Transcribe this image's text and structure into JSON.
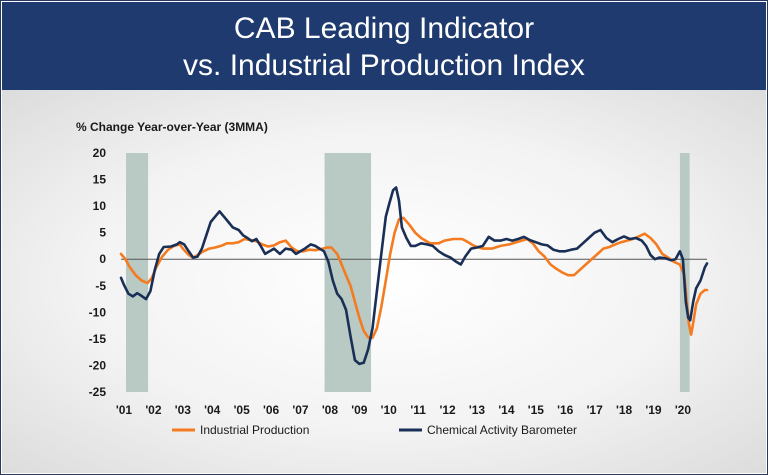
{
  "header": {
    "title_line1": "CAB Leading Indicator",
    "title_line2": "vs. Industrial Production Index"
  },
  "colors": {
    "header_bg": "#1f3a6e",
    "industrial_production": "#f47b20",
    "chemical_activity_barometer": "#1a2f55",
    "recession_shade": "#b9c9c4"
  },
  "chart_data": {
    "type": "line",
    "ylabel": "% Change Year-over-Year (3MMA)",
    "ylim": [
      -25,
      20
    ],
    "yticks": [
      -25,
      -20,
      -15,
      -10,
      -5,
      0,
      5,
      10,
      15,
      20
    ],
    "xlim": [
      2001.0,
      2020.92
    ],
    "xticks": [
      {
        "label": "'01",
        "x": 2001.0
      },
      {
        "label": "'02",
        "x": 2002.0
      },
      {
        "label": "'03",
        "x": 2003.0
      },
      {
        "label": "'04",
        "x": 2004.0
      },
      {
        "label": "'05",
        "x": 2005.0
      },
      {
        "label": "'06",
        "x": 2006.0
      },
      {
        "label": "'07",
        "x": 2007.0
      },
      {
        "label": "'08",
        "x": 2008.0
      },
      {
        "label": "'09",
        "x": 2009.0
      },
      {
        "label": "'10",
        "x": 2010.0
      },
      {
        "label": "'11",
        "x": 2011.0
      },
      {
        "label": "'12",
        "x": 2012.0
      },
      {
        "label": "'13",
        "x": 2013.0
      },
      {
        "label": "'14",
        "x": 2014.0
      },
      {
        "label": "'15",
        "x": 2015.0
      },
      {
        "label": "'16",
        "x": 2016.0
      },
      {
        "label": "'17",
        "x": 2017.0
      },
      {
        "label": "'18",
        "x": 2018.0
      },
      {
        "label": "'19",
        "x": 2019.0
      },
      {
        "label": "'20",
        "x": 2020.0
      }
    ],
    "recessions": [
      [
        2001.17,
        2001.92
      ],
      [
        2007.92,
        2009.5
      ],
      [
        2020.0,
        2020.33
      ]
    ],
    "legend": "bottom",
    "grid": false,
    "series": [
      {
        "name": "Industrial Production",
        "color": "#f47b20",
        "points": [
          [
            2001.0,
            1.0
          ],
          [
            2001.15,
            0.0
          ],
          [
            2001.3,
            -1.5
          ],
          [
            2001.5,
            -3.0
          ],
          [
            2001.7,
            -4.0
          ],
          [
            2001.9,
            -4.5
          ],
          [
            2002.05,
            -3.5
          ],
          [
            2002.2,
            -1.5
          ],
          [
            2002.4,
            0.5
          ],
          [
            2002.6,
            1.8
          ],
          [
            2002.8,
            2.5
          ],
          [
            2003.0,
            2.8
          ],
          [
            2003.1,
            2.0
          ],
          [
            2003.3,
            0.8
          ],
          [
            2003.45,
            0.3
          ],
          [
            2003.6,
            0.8
          ],
          [
            2003.8,
            1.5
          ],
          [
            2004.0,
            2.0
          ],
          [
            2004.2,
            2.2
          ],
          [
            2004.4,
            2.5
          ],
          [
            2004.6,
            3.0
          ],
          [
            2004.8,
            3.0
          ],
          [
            2005.0,
            3.2
          ],
          [
            2005.2,
            3.8
          ],
          [
            2005.4,
            3.6
          ],
          [
            2005.6,
            3.4
          ],
          [
            2005.8,
            2.8
          ],
          [
            2006.0,
            2.4
          ],
          [
            2006.2,
            2.6
          ],
          [
            2006.4,
            3.2
          ],
          [
            2006.6,
            3.5
          ],
          [
            2006.8,
            2.2
          ],
          [
            2007.0,
            1.5
          ],
          [
            2007.2,
            1.5
          ],
          [
            2007.4,
            1.8
          ],
          [
            2007.6,
            1.7
          ],
          [
            2007.8,
            1.9
          ],
          [
            2008.0,
            2.2
          ],
          [
            2008.15,
            2.2
          ],
          [
            2008.35,
            1.0
          ],
          [
            2008.5,
            -1.0
          ],
          [
            2008.65,
            -3.0
          ],
          [
            2008.8,
            -5.0
          ],
          [
            2008.95,
            -8.0
          ],
          [
            2009.1,
            -11.0
          ],
          [
            2009.25,
            -13.5
          ],
          [
            2009.4,
            -14.7
          ],
          [
            2009.55,
            -14.8
          ],
          [
            2009.7,
            -13.0
          ],
          [
            2009.85,
            -9.0
          ],
          [
            2010.0,
            -4.0
          ],
          [
            2010.15,
            1.0
          ],
          [
            2010.3,
            5.0
          ],
          [
            2010.45,
            7.5
          ],
          [
            2010.6,
            7.8
          ],
          [
            2010.8,
            6.5
          ],
          [
            2011.0,
            5.0
          ],
          [
            2011.2,
            4.0
          ],
          [
            2011.5,
            3.0
          ],
          [
            2011.8,
            3.0
          ],
          [
            2012.0,
            3.5
          ],
          [
            2012.3,
            3.8
          ],
          [
            2012.6,
            3.8
          ],
          [
            2012.8,
            3.2
          ],
          [
            2013.0,
            2.5
          ],
          [
            2013.3,
            2.0
          ],
          [
            2013.6,
            2.0
          ],
          [
            2013.9,
            2.5
          ],
          [
            2014.2,
            2.8
          ],
          [
            2014.5,
            3.3
          ],
          [
            2014.8,
            3.8
          ],
          [
            2015.0,
            3.0
          ],
          [
            2015.2,
            1.5
          ],
          [
            2015.4,
            0.5
          ],
          [
            2015.6,
            -1.0
          ],
          [
            2015.8,
            -1.8
          ],
          [
            2016.0,
            -2.5
          ],
          [
            2016.2,
            -3.0
          ],
          [
            2016.4,
            -3.0
          ],
          [
            2016.6,
            -2.0
          ],
          [
            2016.8,
            -1.0
          ],
          [
            2017.0,
            0.0
          ],
          [
            2017.2,
            1.0
          ],
          [
            2017.4,
            2.0
          ],
          [
            2017.6,
            2.3
          ],
          [
            2017.8,
            2.8
          ],
          [
            2018.0,
            3.2
          ],
          [
            2018.2,
            3.5
          ],
          [
            2018.4,
            3.8
          ],
          [
            2018.6,
            4.3
          ],
          [
            2018.8,
            4.8
          ],
          [
            2019.0,
            4.0
          ],
          [
            2019.2,
            2.8
          ],
          [
            2019.4,
            1.0
          ],
          [
            2019.6,
            0.3
          ],
          [
            2019.8,
            -0.5
          ],
          [
            2020.0,
            -1.0
          ],
          [
            2020.15,
            -3.0
          ],
          [
            2020.3,
            -12.0
          ],
          [
            2020.38,
            -14.2
          ],
          [
            2020.45,
            -12.0
          ],
          [
            2020.55,
            -8.5
          ],
          [
            2020.7,
            -6.5
          ],
          [
            2020.85,
            -5.8
          ],
          [
            2020.92,
            -5.8
          ]
        ]
      },
      {
        "name": "Chemical Activity Barometer",
        "color": "#1a2f55",
        "points": [
          [
            2001.0,
            -3.5
          ],
          [
            2001.1,
            -4.8
          ],
          [
            2001.25,
            -6.5
          ],
          [
            2001.4,
            -7.0
          ],
          [
            2001.55,
            -6.4
          ],
          [
            2001.7,
            -6.9
          ],
          [
            2001.85,
            -7.5
          ],
          [
            2002.0,
            -6.0
          ],
          [
            2002.15,
            -2.0
          ],
          [
            2002.3,
            1.0
          ],
          [
            2002.45,
            2.3
          ],
          [
            2002.7,
            2.4
          ],
          [
            2002.9,
            2.8
          ],
          [
            2003.0,
            3.2
          ],
          [
            2003.15,
            2.8
          ],
          [
            2003.3,
            1.5
          ],
          [
            2003.45,
            0.3
          ],
          [
            2003.6,
            0.5
          ],
          [
            2003.75,
            2.0
          ],
          [
            2003.9,
            4.5
          ],
          [
            2004.05,
            7.0
          ],
          [
            2004.2,
            8.0
          ],
          [
            2004.35,
            9.0
          ],
          [
            2004.5,
            8.0
          ],
          [
            2004.65,
            7.0
          ],
          [
            2004.8,
            6.0
          ],
          [
            2005.0,
            5.5
          ],
          [
            2005.15,
            4.5
          ],
          [
            2005.3,
            4.0
          ],
          [
            2005.45,
            3.4
          ],
          [
            2005.6,
            3.8
          ],
          [
            2005.75,
            2.5
          ],
          [
            2005.9,
            1.0
          ],
          [
            2006.05,
            1.5
          ],
          [
            2006.2,
            2.0
          ],
          [
            2006.4,
            1.0
          ],
          [
            2006.6,
            2.0
          ],
          [
            2006.8,
            1.8
          ],
          [
            2006.95,
            1.0
          ],
          [
            2007.1,
            1.5
          ],
          [
            2007.25,
            2.0
          ],
          [
            2007.45,
            2.8
          ],
          [
            2007.6,
            2.5
          ],
          [
            2007.75,
            2.0
          ],
          [
            2007.9,
            1.5
          ],
          [
            2008.05,
            -0.5
          ],
          [
            2008.2,
            -4.0
          ],
          [
            2008.35,
            -6.5
          ],
          [
            2008.5,
            -7.5
          ],
          [
            2008.65,
            -9.5
          ],
          [
            2008.8,
            -14.5
          ],
          [
            2008.95,
            -19.0
          ],
          [
            2009.1,
            -19.7
          ],
          [
            2009.25,
            -19.5
          ],
          [
            2009.4,
            -17.0
          ],
          [
            2009.55,
            -13.0
          ],
          [
            2009.7,
            -6.0
          ],
          [
            2009.85,
            1.0
          ],
          [
            2010.0,
            8.0
          ],
          [
            2010.12,
            10.5
          ],
          [
            2010.25,
            13.0
          ],
          [
            2010.35,
            13.5
          ],
          [
            2010.45,
            11.0
          ],
          [
            2010.55,
            6.0
          ],
          [
            2010.7,
            4.0
          ],
          [
            2010.85,
            2.5
          ],
          [
            2011.0,
            2.5
          ],
          [
            2011.2,
            3.0
          ],
          [
            2011.4,
            2.8
          ],
          [
            2011.6,
            2.5
          ],
          [
            2011.8,
            1.5
          ],
          [
            2012.0,
            0.8
          ],
          [
            2012.2,
            0.3
          ],
          [
            2012.4,
            -0.5
          ],
          [
            2012.55,
            -1.0
          ],
          [
            2012.7,
            0.5
          ],
          [
            2012.9,
            2.0
          ],
          [
            2013.1,
            2.2
          ],
          [
            2013.3,
            2.5
          ],
          [
            2013.5,
            4.2
          ],
          [
            2013.7,
            3.5
          ],
          [
            2013.9,
            3.5
          ],
          [
            2014.1,
            3.8
          ],
          [
            2014.3,
            3.5
          ],
          [
            2014.5,
            3.8
          ],
          [
            2014.7,
            4.2
          ],
          [
            2014.9,
            3.6
          ],
          [
            2015.1,
            3.2
          ],
          [
            2015.3,
            2.8
          ],
          [
            2015.5,
            2.6
          ],
          [
            2015.7,
            1.8
          ],
          [
            2015.9,
            1.5
          ],
          [
            2016.1,
            1.5
          ],
          [
            2016.3,
            1.8
          ],
          [
            2016.5,
            2.0
          ],
          [
            2016.7,
            3.0
          ],
          [
            2016.9,
            4.0
          ],
          [
            2017.1,
            5.0
          ],
          [
            2017.3,
            5.5
          ],
          [
            2017.5,
            4.0
          ],
          [
            2017.7,
            3.2
          ],
          [
            2017.9,
            3.8
          ],
          [
            2018.1,
            4.3
          ],
          [
            2018.3,
            3.8
          ],
          [
            2018.5,
            4.0
          ],
          [
            2018.7,
            3.5
          ],
          [
            2018.85,
            2.5
          ],
          [
            2019.0,
            0.8
          ],
          [
            2019.15,
            0.0
          ],
          [
            2019.3,
            0.3
          ],
          [
            2019.5,
            0.2
          ],
          [
            2019.7,
            -0.2
          ],
          [
            2019.85,
            0.0
          ],
          [
            2020.0,
            1.5
          ],
          [
            2020.1,
            0.0
          ],
          [
            2020.2,
            -8.0
          ],
          [
            2020.28,
            -11.0
          ],
          [
            2020.35,
            -11.5
          ],
          [
            2020.45,
            -8.0
          ],
          [
            2020.55,
            -5.5
          ],
          [
            2020.7,
            -4.0
          ],
          [
            2020.85,
            -1.5
          ],
          [
            2020.92,
            -0.8
          ]
        ]
      }
    ]
  }
}
